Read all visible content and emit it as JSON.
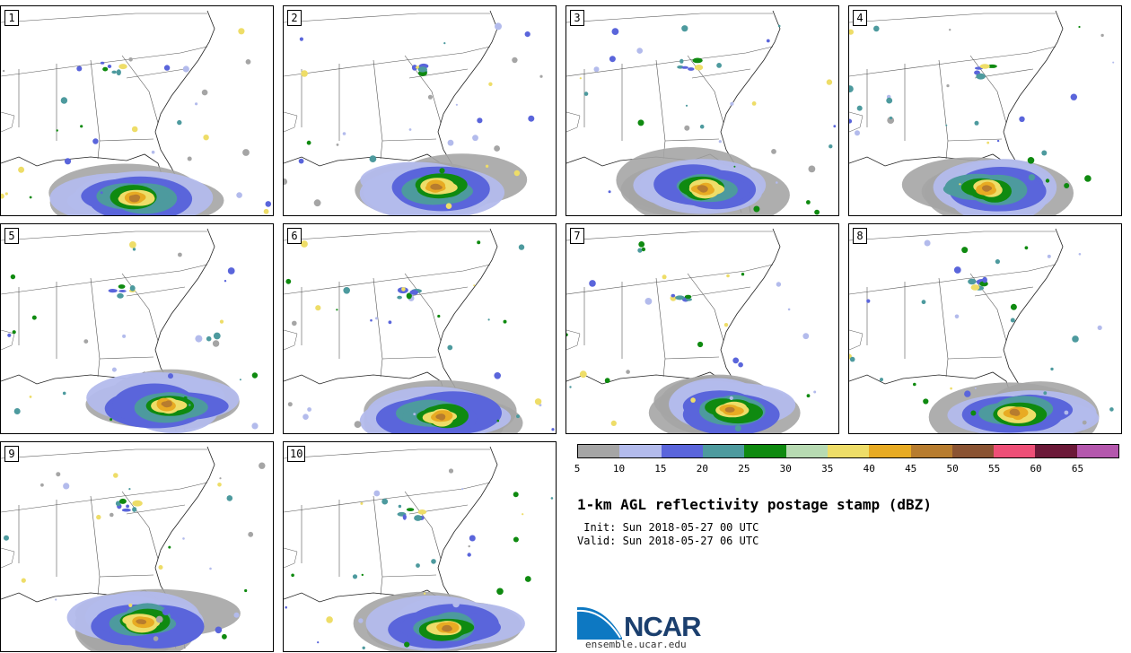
{
  "panels": [
    {
      "label": "1"
    },
    {
      "label": "2"
    },
    {
      "label": "3"
    },
    {
      "label": "4"
    },
    {
      "label": "5"
    },
    {
      "label": "6"
    },
    {
      "label": "7"
    },
    {
      "label": "8"
    },
    {
      "label": "9"
    },
    {
      "label": "10"
    }
  ],
  "colorbar": {
    "colors": [
      "#a5a5a5",
      "#b3bbec",
      "#5a65db",
      "#4d9a9e",
      "#0f8a10",
      "#b7dab2",
      "#eedd68",
      "#e8ab23",
      "#b77c2e",
      "#8a5332",
      "#ee4f77",
      "#6b1938",
      "#b457ad"
    ],
    "ticks": [
      "5",
      "10",
      "15",
      "20",
      "25",
      "30",
      "35",
      "40",
      "45",
      "50",
      "55",
      "60",
      "65"
    ]
  },
  "title": "1-km AGL reflectivity postage stamp (dBZ)",
  "init": " Init: Sun 2018-05-27 00 UTC",
  "valid": "Valid: Sun 2018-05-27 06 UTC",
  "logo": {
    "text": "NCAR",
    "url_text": "ensemble.ucar.edu",
    "color": "#1b3f6e",
    "accent": "#0d78c2"
  }
}
